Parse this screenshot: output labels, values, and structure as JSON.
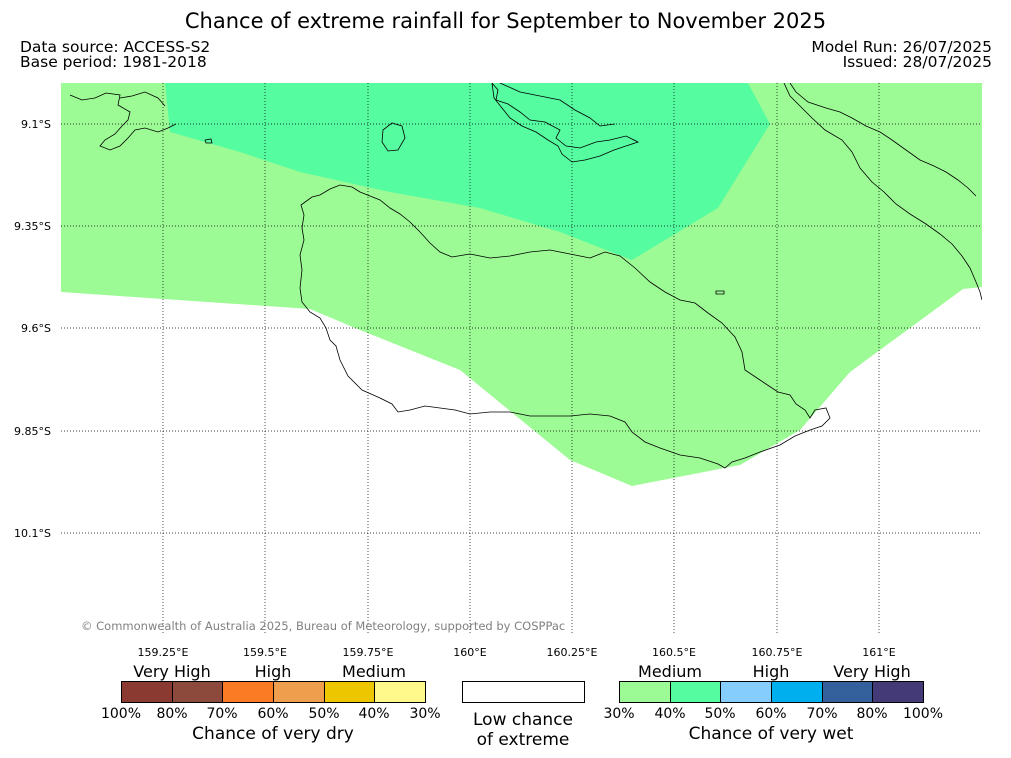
{
  "header": {
    "title": "Chance of extreme rainfall for September to November 2025",
    "data_source": "Data source: ACCESS-S2",
    "base_period": "Base period: 1981-2018",
    "model_run": "Model Run: 26/07/2025",
    "issued": "Issued: 28/07/2025"
  },
  "map": {
    "lat_labels": [
      "9.1°S",
      "9.35°S",
      "9.6°S",
      "9.85°S",
      "10.1°S"
    ],
    "lon_labels": [
      "159.25°E",
      "159.5°E",
      "159.75°E",
      "160°E",
      "160.25°E",
      "160.5°E",
      "160.75°E",
      "161°E"
    ],
    "copyright": "© Commonwealth of Australia 2025, Bureau of Meteorology, supported by COSPPac",
    "region_colors": {
      "wet_30_40": "#9cfb94",
      "wet_40_50": "#55fca0",
      "coast": "#000000"
    }
  },
  "legend": {
    "dry": {
      "categories": [
        "Very High",
        "High",
        "Medium"
      ],
      "colors": [
        "#8b3a32",
        "#8b4a3c",
        "#fb7b25",
        "#ee9e4d",
        "#eec600",
        "#fff88b"
      ],
      "percents": [
        "100%",
        "80%",
        "70%",
        "60%",
        "50%",
        "40%",
        "30%"
      ],
      "caption": "Chance of very dry"
    },
    "low": {
      "line1": "Low chance",
      "line2": "of extreme"
    },
    "wet": {
      "categories": [
        "Medium",
        "High",
        "Very High"
      ],
      "colors": [
        "#9cfb94",
        "#55fca0",
        "#85cdfc",
        "#00b0ee",
        "#34609c",
        "#433a77"
      ],
      "percents": [
        "30%",
        "40%",
        "50%",
        "60%",
        "70%",
        "80%",
        "100%"
      ],
      "caption": "Chance of very wet"
    }
  }
}
